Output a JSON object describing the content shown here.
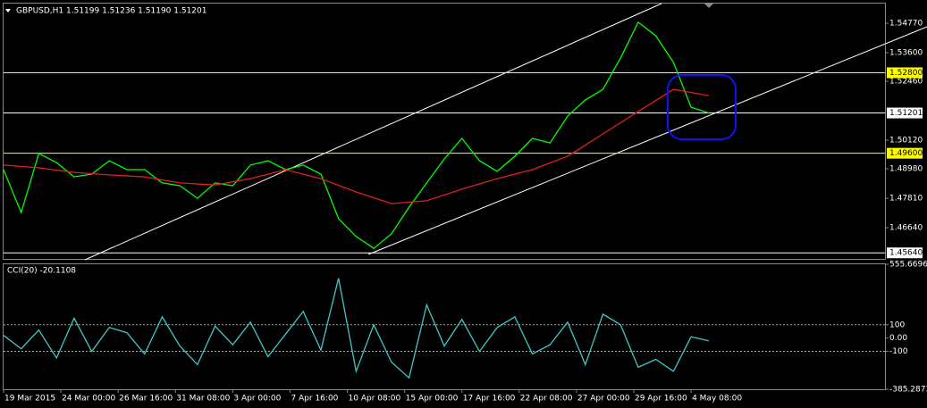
{
  "chart_data": [
    {
      "type": "line",
      "title": "GBPUSD,H1  1.51199 1.51236 1.51190 1.51201",
      "xlim": [
        0,
        200
      ],
      "ylim": [
        1.454,
        1.5555
      ],
      "yticks": [
        {
          "value": 1.5477,
          "label": "1.54770"
        },
        {
          "value": 1.536,
          "label": "1.53600"
        },
        {
          "value": 1.5246,
          "label": "1.52460"
        },
        {
          "value": 1.5012,
          "label": "1.50120"
        },
        {
          "value": 1.4898,
          "label": "1.48980"
        },
        {
          "value": 1.4781,
          "label": "1.47810"
        },
        {
          "value": 1.4664,
          "label": "1.46640"
        }
      ],
      "hlines": [
        {
          "value": 1.528,
          "label": "1.52800",
          "color": "#ffff00"
        },
        {
          "value": 1.496,
          "label": "1.49600",
          "color": "#ffff00"
        },
        {
          "value": 1.51201,
          "label": "1.51201",
          "color": "#ffffff"
        },
        {
          "value": 1.4564,
          "label": "1.45640",
          "color": "#ffffff"
        }
      ],
      "grid": false,
      "series": [
        {
          "color": "#00ff00",
          "x": [
            0,
            4,
            8,
            12,
            16,
            20,
            24,
            28,
            32,
            36,
            40,
            44,
            48,
            52,
            56,
            60,
            64,
            68,
            72,
            76,
            80,
            84,
            88,
            92,
            96,
            100,
            104,
            108,
            112,
            116,
            120,
            124,
            128,
            132,
            136,
            140,
            144,
            148,
            152,
            156,
            160
          ],
          "values": [
            1.4895,
            1.4724,
            1.4959,
            1.4923,
            1.4866,
            1.4877,
            1.493,
            1.4895,
            1.4895,
            1.4842,
            1.4831,
            1.4781,
            1.4842,
            1.4831,
            1.4913,
            1.493,
            1.4895,
            1.4913,
            1.4877,
            1.47,
            1.4629,
            1.4582,
            1.4639,
            1.4746,
            1.4842,
            1.4937,
            1.5019,
            1.493,
            1.4888,
            1.4948,
            1.5019,
            1.5001,
            1.5108,
            1.5172,
            1.5214,
            1.5339,
            1.5481,
            1.5427,
            1.5321,
            1.5143,
            1.51201
          ]
        },
        {
          "color": "#e02020",
          "x": [
            0,
            8,
            16,
            24,
            32,
            40,
            48,
            56,
            64,
            72,
            80,
            88,
            96,
            104,
            112,
            120,
            128,
            136,
            144,
            152,
            160
          ],
          "values": [
            1.4913,
            1.4902,
            1.4884,
            1.4874,
            1.4866,
            1.4842,
            1.4834,
            1.4859,
            1.4895,
            1.4859,
            1.4806,
            1.476,
            1.4771,
            1.4817,
            1.4859,
            1.4895,
            1.4948,
            1.5037,
            1.5126,
            1.5214,
            1.5189
          ]
        }
      ]
    },
    {
      "type": "line",
      "title": "CCI(20) -20.1108",
      "xlim": [
        0,
        200
      ],
      "ylim": [
        -385.2873,
        555.6696
      ],
      "yticks": [
        555.6696,
        100,
        {
          "value": 0,
          "label": "0.00"
        },
        -100,
        -385.2873
      ],
      "levels": [
        100,
        -100
      ],
      "xticks": [
        {
          "value": 0,
          "label": "19 Mar 2015"
        },
        {
          "value": 13,
          "label": "24 Mar 00:00"
        },
        {
          "value": 26,
          "label": "26 Mar 16:00"
        },
        {
          "value": 39,
          "label": "31 Mar 08:00"
        },
        {
          "value": 52,
          "label": "3 Apr 00:00"
        },
        {
          "value": 65,
          "label": "7 Apr 16:00"
        },
        {
          "value": 78,
          "label": "10 Apr 08:00"
        },
        {
          "value": 91,
          "label": "15 Apr 00:00"
        },
        {
          "value": 104,
          "label": "17 Apr 16:00"
        },
        {
          "value": 117,
          "label": "22 Apr 08:00"
        },
        {
          "value": 130,
          "label": "27 Apr 00:00"
        },
        {
          "value": 143,
          "label": "29 Apr 16:00"
        },
        {
          "value": 156,
          "label": "4 May 08:00"
        }
      ],
      "series": [
        {
          "color": "#40c8c8",
          "x": [
            0,
            4,
            8,
            12,
            16,
            20,
            24,
            28,
            32,
            36,
            40,
            44,
            48,
            52,
            56,
            60,
            64,
            68,
            72,
            76,
            80,
            84,
            88,
            92,
            96,
            100,
            104,
            108,
            112,
            116,
            120,
            124,
            128,
            132,
            136,
            140,
            144,
            148,
            152,
            156,
            160
          ],
          "values": [
            20,
            -80,
            60,
            -150,
            150,
            -100,
            80,
            40,
            -120,
            160,
            -60,
            -200,
            90,
            -50,
            120,
            -140,
            30,
            200,
            -90,
            450,
            -250,
            100,
            -180,
            -300,
            250,
            -60,
            140,
            -100,
            80,
            160,
            -120,
            -50,
            120,
            -200,
            180,
            100,
            -220,
            -160,
            -250,
            10,
            -20.1108
          ]
        }
      ]
    }
  ]
}
